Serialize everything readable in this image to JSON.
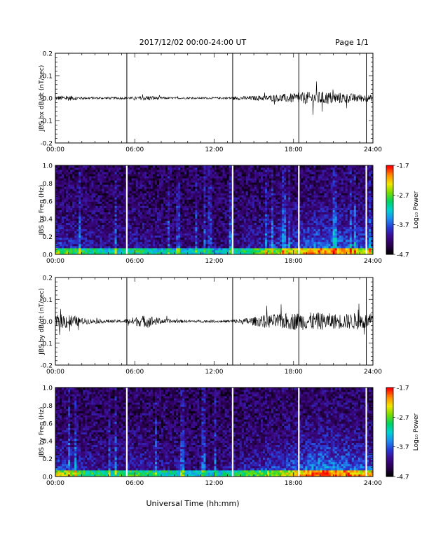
{
  "header": {
    "title": "2017/12/02  00:00-24:00 UT",
    "page": "Page 1/1"
  },
  "footer": {
    "xlabel": "Universal Time (hh:mm)"
  },
  "colors": {
    "trace": "#000000",
    "gap_line": "#000000",
    "spectrogram_gap": "#ffffff",
    "colormap": [
      "#000000",
      "#2a0050",
      "#3c0a8c",
      "#2838d2",
      "#1e8cf0",
      "#00d2d2",
      "#00d264",
      "#78dc00",
      "#f0e600",
      "#ff8c00",
      "#ff0000"
    ]
  },
  "chart_data": [
    {
      "type": "line",
      "id": "panel-bx-dbdt",
      "ylabel": "JBS bx dB/dt (nT/sec)",
      "xlim": [
        0,
        24
      ],
      "ylim": [
        -0.2,
        0.2
      ],
      "xticks": [
        "00:00",
        "06:00",
        "12:00",
        "18:00",
        "24:00"
      ],
      "yticks": [
        "0.2",
        "0.1",
        "0.0",
        "-0.1",
        "-0.2"
      ],
      "gaps_hours": [
        5.4,
        13.4,
        18.4,
        23.5
      ],
      "envelope": {
        "hours": [
          0,
          1,
          2,
          3,
          4,
          5,
          6,
          7,
          8,
          9,
          10,
          11,
          12,
          13,
          14,
          15,
          16,
          17,
          18,
          19,
          20,
          21,
          22,
          23,
          24
        ],
        "amplitude": [
          0.01,
          0.012,
          0.006,
          0.005,
          0.005,
          0.005,
          0.006,
          0.012,
          0.005,
          0.004,
          0.004,
          0.004,
          0.004,
          0.005,
          0.008,
          0.01,
          0.013,
          0.018,
          0.022,
          0.028,
          0.03,
          0.028,
          0.022,
          0.018,
          0.014
        ]
      }
    },
    {
      "type": "heatmap",
      "id": "panel-bx-spectrogram",
      "ylabel": "JBS bx Freq (Hz)",
      "xlim": [
        0,
        24
      ],
      "ylim": [
        0,
        1.0
      ],
      "xticks": [
        "00:00",
        "06:00",
        "12:00",
        "18:00",
        "24:00"
      ],
      "yticks": [
        "1.0",
        "0.8",
        "0.6",
        "0.4",
        "0.2",
        "0.0"
      ],
      "colorbar": {
        "label": "Log₁₀ Power",
        "range": [
          -4.7,
          -1.7
        ],
        "ticks": [
          "-1.7",
          "-2.7",
          "-3.7",
          "-4.7"
        ]
      },
      "gaps_hours": [
        5.4,
        13.4,
        18.4,
        23.5
      ],
      "activity_hours": [
        0,
        2,
        4,
        6,
        8,
        10,
        12,
        14,
        16,
        18,
        20,
        22,
        24
      ],
      "activity_level": [
        0.45,
        0.3,
        0.2,
        0.28,
        0.2,
        0.15,
        0.12,
        0.25,
        0.4,
        0.55,
        0.75,
        0.65,
        0.5
      ]
    },
    {
      "type": "line",
      "id": "panel-by-dbdt",
      "ylabel": "JBS by dB/dt (nT/sec)",
      "xlim": [
        0,
        24
      ],
      "ylim": [
        -0.2,
        0.2
      ],
      "xticks": [
        "00:00",
        "06:00",
        "12:00",
        "18:00",
        "24:00"
      ],
      "yticks": [
        "0.2",
        "0.1",
        "0.0",
        "-0.1",
        "-0.2"
      ],
      "gaps_hours": [
        5.4,
        13.4,
        18.4,
        23.5
      ],
      "envelope": {
        "hours": [
          0,
          1,
          2,
          3,
          4,
          5,
          6,
          7,
          8,
          9,
          10,
          11,
          12,
          13,
          14,
          15,
          16,
          17,
          18,
          19,
          20,
          21,
          22,
          23,
          24
        ],
        "amplitude": [
          0.03,
          0.035,
          0.015,
          0.01,
          0.008,
          0.006,
          0.02,
          0.03,
          0.012,
          0.008,
          0.006,
          0.006,
          0.006,
          0.006,
          0.012,
          0.02,
          0.03,
          0.035,
          0.04,
          0.04,
          0.04,
          0.035,
          0.035,
          0.04,
          0.03
        ]
      }
    },
    {
      "type": "heatmap",
      "id": "panel-by-spectrogram",
      "ylabel": "JBS by Freq (Hz)",
      "xlim": [
        0,
        24
      ],
      "ylim": [
        0,
        1.0
      ],
      "xticks": [
        "00:00",
        "06:00",
        "12:00",
        "18:00",
        "24:00"
      ],
      "yticks": [
        "1.0",
        "0.8",
        "0.6",
        "0.4",
        "0.2",
        "0.0"
      ],
      "colorbar": {
        "label": "Log₁₀ Power",
        "range": [
          -4.7,
          -1.7
        ],
        "ticks": [
          "-1.7",
          "-2.7",
          "-3.7",
          "-4.7"
        ]
      },
      "gaps_hours": [
        5.4,
        13.4,
        18.4,
        23.5
      ],
      "activity_hours": [
        0,
        2,
        4,
        6,
        8,
        10,
        12,
        14,
        16,
        18,
        20,
        22,
        24
      ],
      "activity_level": [
        0.55,
        0.35,
        0.25,
        0.35,
        0.25,
        0.18,
        0.15,
        0.3,
        0.45,
        0.6,
        0.85,
        0.75,
        0.6
      ]
    }
  ]
}
